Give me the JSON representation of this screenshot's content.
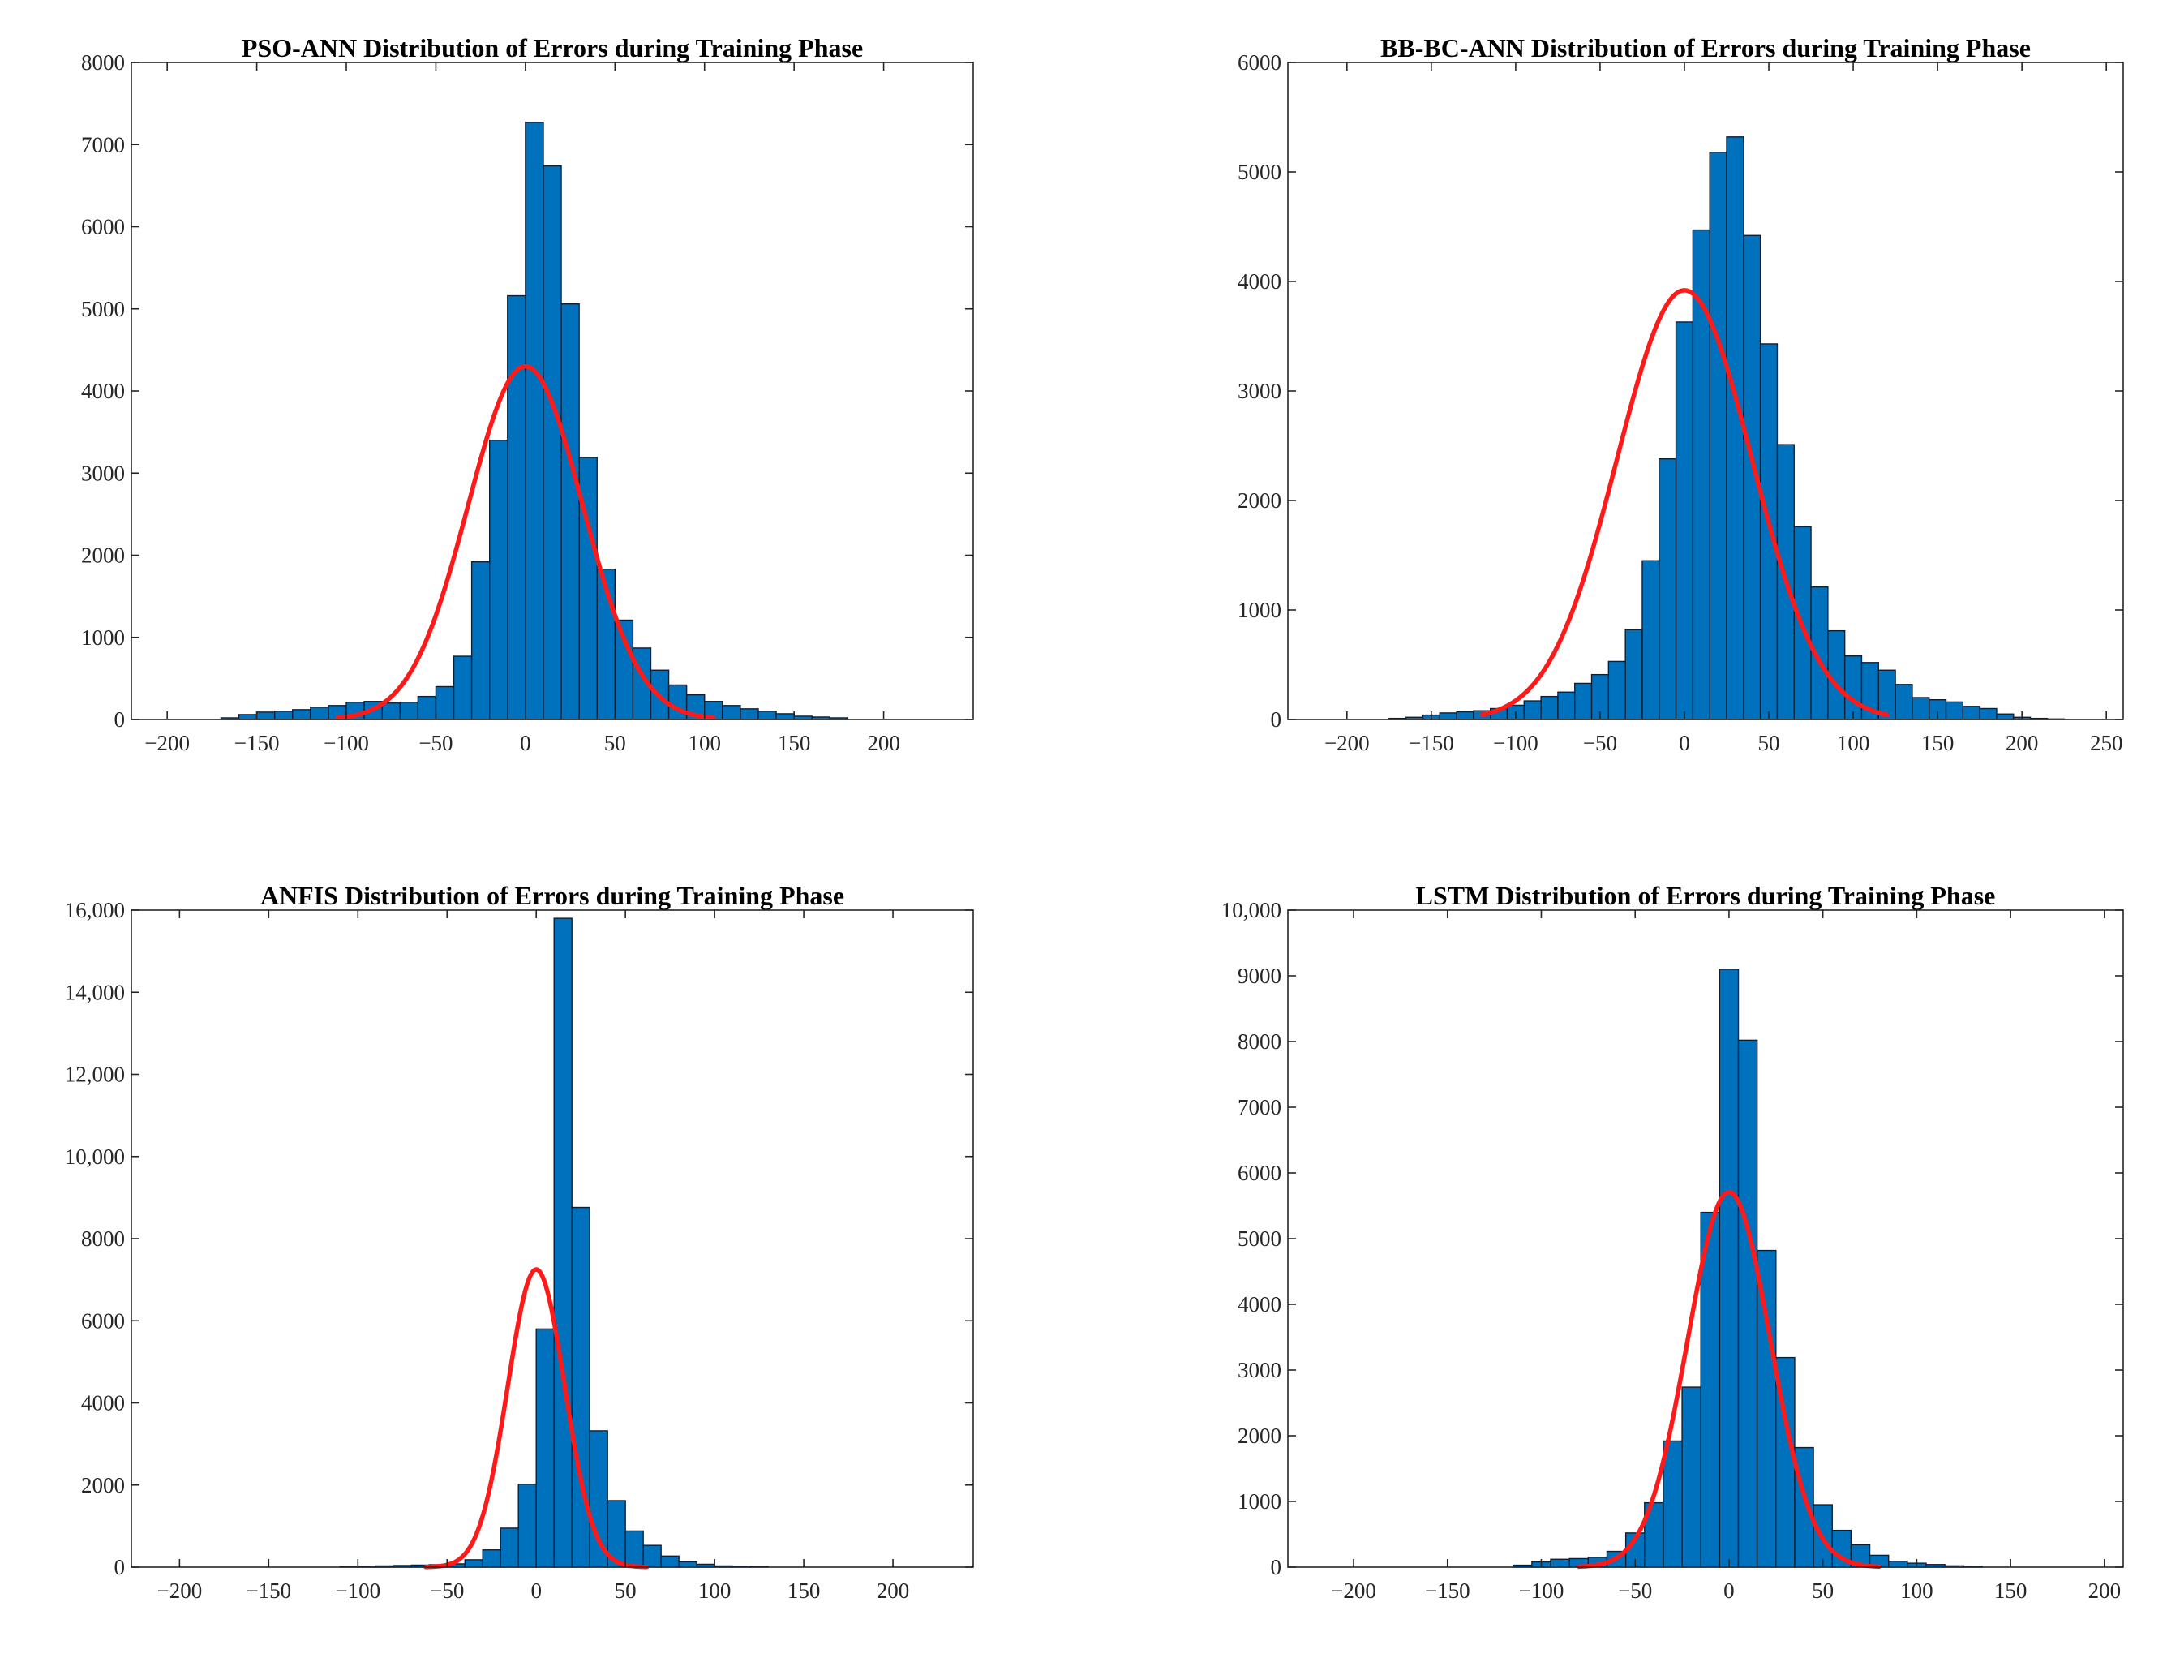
{
  "colors": {
    "bar": "#0072BD",
    "curve": "#FF1A1A"
  },
  "chart_data": [
    {
      "type": "bar",
      "subtype": "histogram",
      "title": "PSO-ANN Distribution of Errors during Training Phase",
      "xlim": [
        -220,
        250
      ],
      "ylim": [
        0,
        8000
      ],
      "xticks": [
        -200,
        -150,
        -100,
        -50,
        0,
        50,
        100,
        150,
        200
      ],
      "xtick_labels": [
        "−200",
        "−150",
        "−100",
        "−50",
        "0",
        "50",
        "100",
        "150",
        "200"
      ],
      "yticks": [
        0,
        1000,
        2000,
        3000,
        4000,
        5000,
        6000,
        7000,
        8000
      ],
      "ytick_labels": [
        "0",
        "1000",
        "2000",
        "3000",
        "4000",
        "5000",
        "6000",
        "7000",
        "8000"
      ],
      "bin_start": -180,
      "bin_width": 10,
      "values": [
        0,
        20,
        60,
        90,
        100,
        120,
        150,
        170,
        210,
        220,
        200,
        210,
        280,
        400,
        770,
        1920,
        3400,
        5160,
        7270,
        6740,
        5060,
        3190,
        1830,
        1210,
        870,
        600,
        420,
        300,
        220,
        170,
        130,
        100,
        70,
        40,
        30,
        20
      ],
      "fit_curve": {
        "name": "normal fit",
        "mean": 0,
        "sd": 32,
        "peak": 4300,
        "x_range": [
          -105,
          105
        ]
      }
    },
    {
      "type": "bar",
      "subtype": "histogram",
      "title": "BB-BC-ANN Distribution of Errors during Training Phase",
      "xlim": [
        -235,
        260
      ],
      "ylim": [
        0,
        6000
      ],
      "xticks": [
        -200,
        -150,
        -100,
        -50,
        0,
        50,
        100,
        150,
        200,
        250
      ],
      "xtick_labels": [
        "−200",
        "−150",
        "−100",
        "−50",
        "0",
        "50",
        "100",
        "150",
        "200",
        "250"
      ],
      "yticks": [
        0,
        1000,
        2000,
        3000,
        4000,
        5000,
        6000
      ],
      "ytick_labels": [
        "0",
        "1000",
        "2000",
        "3000",
        "4000",
        "5000",
        "6000"
      ],
      "bin_start": -205,
      "bin_width": 10,
      "values": [
        0,
        0,
        0,
        10,
        20,
        40,
        60,
        70,
        80,
        100,
        130,
        170,
        210,
        250,
        330,
        410,
        530,
        820,
        1450,
        2380,
        3630,
        4470,
        5180,
        5320,
        4420,
        3430,
        2510,
        1760,
        1210,
        810,
        580,
        520,
        450,
        320,
        200,
        180,
        160,
        120,
        100,
        50,
        20,
        10,
        5,
        0
      ],
      "fit_curve": {
        "name": "normal fit",
        "mean": 0,
        "sd": 40,
        "peak": 3920,
        "x_range": [
          -120,
          120
        ]
      }
    },
    {
      "type": "bar",
      "subtype": "histogram",
      "title": "ANFIS Distribution of Errors during Training Phase",
      "xlim": [
        -227,
        245
      ],
      "ylim": [
        0,
        16000
      ],
      "xticks": [
        -200,
        -150,
        -100,
        -50,
        0,
        50,
        100,
        150,
        200
      ],
      "xtick_labels": [
        "−200",
        "−150",
        "−100",
        "−50",
        "0",
        "50",
        "100",
        "150",
        "200"
      ],
      "yticks": [
        0,
        2000,
        4000,
        6000,
        8000,
        10000,
        12000,
        14000,
        16000
      ],
      "ytick_labels": [
        "0",
        "2000",
        "4000",
        "6000",
        "8000",
        "10,000",
        "12,000",
        "14,000",
        "16,000"
      ],
      "bin_start": -150,
      "bin_width": 10,
      "values": [
        0,
        0,
        0,
        0,
        10,
        20,
        30,
        40,
        50,
        60,
        80,
        180,
        420,
        950,
        2020,
        5800,
        15800,
        8760,
        3320,
        1620,
        880,
        530,
        270,
        130,
        70,
        30,
        20,
        10,
        0
      ],
      "fit_curve": {
        "name": "normal fit",
        "mean": 0,
        "sd": 16,
        "peak": 7250,
        "x_range": [
          -62,
          62
        ]
      }
    },
    {
      "type": "bar",
      "subtype": "histogram",
      "title": "LSTM Distribution of Errors during  Training Phase",
      "xlim": [
        -235,
        210
      ],
      "ylim": [
        0,
        10000
      ],
      "xticks": [
        -200,
        -150,
        -100,
        -50,
        0,
        50,
        100,
        150,
        200
      ],
      "xtick_labels": [
        "−200",
        "−150",
        "−100",
        "−50",
        "0",
        "50",
        "100",
        "150",
        "200"
      ],
      "yticks": [
        0,
        1000,
        2000,
        3000,
        4000,
        5000,
        6000,
        7000,
        8000,
        9000,
        10000
      ],
      "ytick_labels": [
        "0",
        "1000",
        "2000",
        "3000",
        "4000",
        "5000",
        "6000",
        "7000",
        "8000",
        "9000",
        "10,000"
      ],
      "bin_start": -115,
      "bin_width": 10,
      "values": [
        30,
        80,
        120,
        130,
        150,
        240,
        520,
        980,
        1920,
        2740,
        5400,
        9100,
        8020,
        4820,
        3190,
        1820,
        950,
        560,
        340,
        180,
        90,
        60,
        40,
        20,
        10
      ],
      "fit_curve": {
        "name": "normal fit",
        "mean": 0,
        "sd": 22,
        "peak": 5710,
        "x_range": [
          -80,
          80
        ]
      }
    }
  ]
}
